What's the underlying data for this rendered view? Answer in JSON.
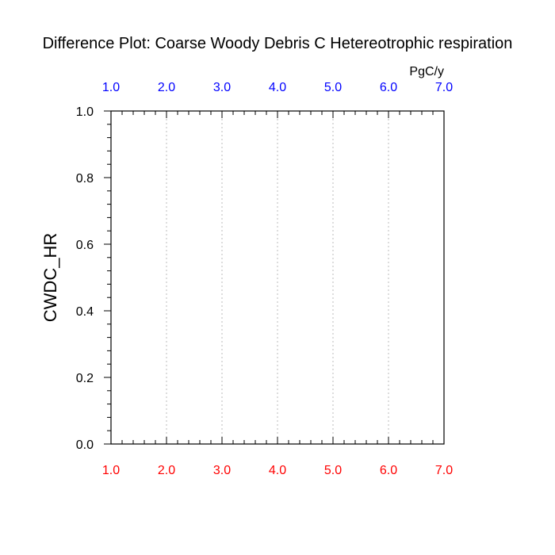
{
  "chart_data": {
    "type": "line",
    "title": "Difference Plot: Coarse Woody Debris C Hetereotrophic respiration",
    "units": "PgC/y",
    "ylabel": "CWDC_HR",
    "xlim": [
      1.0,
      7.0
    ],
    "ylim": [
      0.0,
      1.0
    ],
    "x_ticks_top": [
      "1.0",
      "2.0",
      "3.0",
      "4.0",
      "5.0",
      "6.0",
      "7.0"
    ],
    "x_ticks_bottom": [
      "1.0",
      "2.0",
      "3.0",
      "4.0",
      "5.0",
      "6.0",
      "7.0"
    ],
    "y_ticks": [
      "0.0",
      "0.2",
      "0.4",
      "0.6",
      "0.8",
      "1.0"
    ],
    "x_tick_values": [
      1,
      2,
      3,
      4,
      5,
      6,
      7
    ],
    "y_tick_values": [
      0,
      0.2,
      0.4,
      0.6,
      0.8,
      1.0
    ],
    "grid": "vertical dotted",
    "series": [],
    "colors": {
      "top_ticks": "#0000ff",
      "bottom_ticks": "#ff0000",
      "axis": "#000000",
      "grid": "#bbbbbb"
    }
  }
}
